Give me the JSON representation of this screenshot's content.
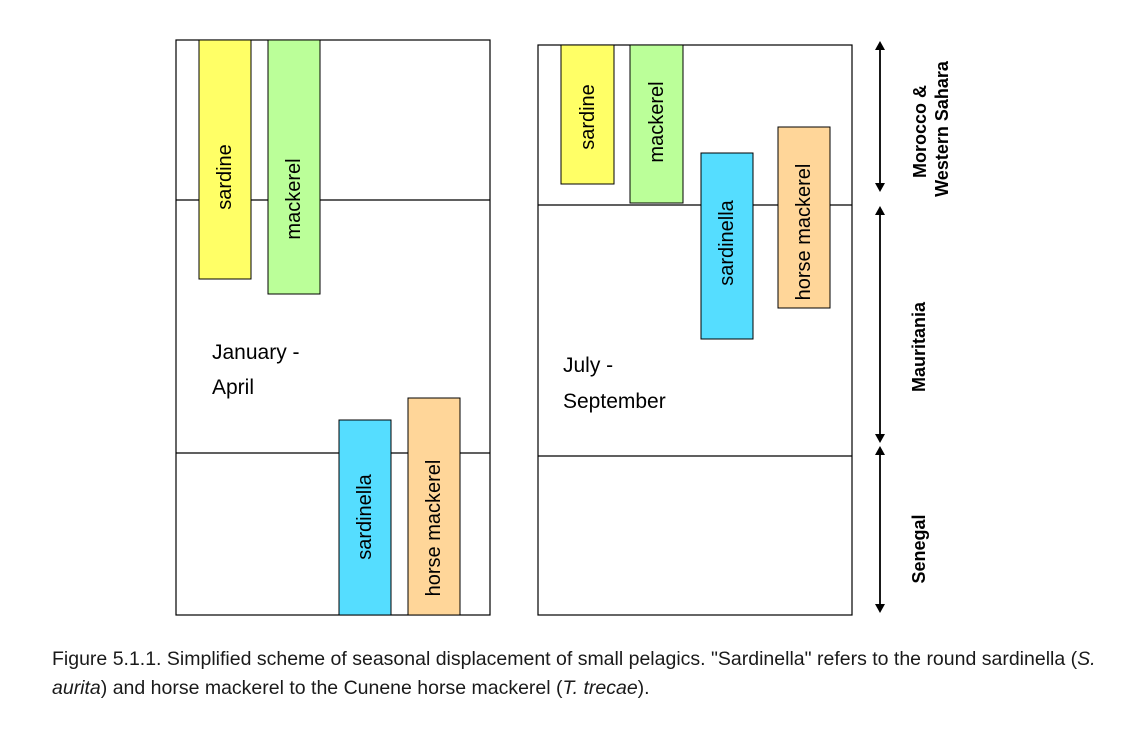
{
  "panels": [
    {
      "season": [
        "January -",
        "April"
      ],
      "species": [
        {
          "label": "sardine",
          "color": "#ffff66"
        },
        {
          "label": "mackerel",
          "color": "#bbff99"
        },
        {
          "label": "sardinella",
          "color": "#55ddff"
        },
        {
          "label": "horse mackerel",
          "color": "#ffd699"
        }
      ]
    },
    {
      "season": [
        "July -",
        "September"
      ],
      "species": [
        {
          "label": "sardine",
          "color": "#ffff66"
        },
        {
          "label": "mackerel",
          "color": "#bbff99"
        },
        {
          "label": "sardinella",
          "color": "#55ddff"
        },
        {
          "label": "horse mackerel",
          "color": "#ffd699"
        }
      ]
    }
  ],
  "regions": [
    {
      "label_lines": [
        "Morocco &",
        "Western Sahara"
      ]
    },
    {
      "label_lines": [
        "Mauritania"
      ]
    },
    {
      "label_lines": [
        "Senegal"
      ]
    }
  ],
  "caption": {
    "part1": "Figure 5.1.1. Simplified scheme of seasonal displacement of small pelagics. \"Sardinella\" refers to the round sardinella (",
    "sp1": "S. aurita",
    "part2": ") and horse mackerel to the Cunene horse mackerel (",
    "sp2": "T. trecae",
    "part3": ")."
  }
}
